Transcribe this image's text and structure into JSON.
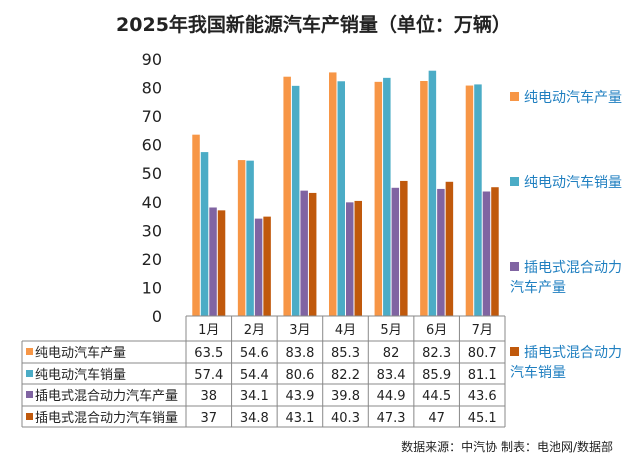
{
  "chart_data": {
    "type": "bar",
    "title": "2025年我国新能源汽车产销量（单位：万辆）",
    "categories": [
      "1月",
      "2月",
      "3月",
      "4月",
      "5月",
      "6月",
      "7月"
    ],
    "ylim": [
      0,
      90
    ],
    "yticks": [
      0,
      10,
      20,
      30,
      40,
      50,
      60,
      70,
      80,
      90
    ],
    "grid": false,
    "legend_placement": "right",
    "series": [
      {
        "name": "纯电动汽车产量",
        "color": "#F79646",
        "values": [
          63.5,
          54.6,
          83.8,
          85.3,
          82,
          82.3,
          80.7
        ]
      },
      {
        "name": "纯电动汽车销量",
        "color": "#4BACC6",
        "values": [
          57.4,
          54.4,
          80.6,
          82.2,
          83.4,
          85.9,
          81.1
        ]
      },
      {
        "name": "插电式混合动力汽车产量",
        "color": "#8064A2",
        "values": [
          38,
          34.1,
          43.9,
          39.8,
          44.9,
          44.5,
          43.6
        ]
      },
      {
        "name": "插电式混合动力汽车销量",
        "color": "#C0590C",
        "values": [
          37,
          34.8,
          43.1,
          40.3,
          47.3,
          47,
          45.1
        ]
      }
    ]
  },
  "source": "数据来源：中汽协  制表：电池网/数据部"
}
